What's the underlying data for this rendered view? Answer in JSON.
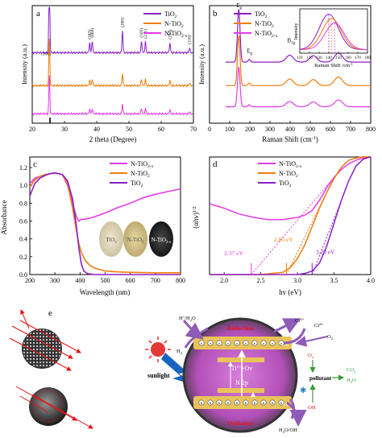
{
  "colors": {
    "tio2": "#8B1FC8",
    "ntio2": "#F07C0A",
    "ntio2x": "#E23CE6",
    "axis": "#000000",
    "sphere_outer": "#4a4a4a",
    "cb_band": "#E9C35A",
    "sun": "#E53935",
    "bolt": "#1565C0",
    "arrow_red": "#E01515",
    "arrow_purple": "#8E5BB7",
    "arrow_green": "#3C9A3C"
  },
  "chart_data": [
    {
      "panel": "a",
      "type": "line",
      "xlabel": "2 theta (Degree)",
      "ylabel": "Intensity (a.u.)",
      "xlim": [
        20,
        70
      ],
      "xticks": [
        "20",
        "30",
        "40",
        "50",
        "60",
        "70"
      ],
      "legend": [
        "TiO",
        "N-TiO",
        "N-TiO"
      ],
      "legend_sub": [
        "2",
        "2",
        "2-x"
      ],
      "legend_position": "top-right",
      "peak_labels": [
        {
          "x": 25.3,
          "label": "(101)"
        },
        {
          "x": 37.8,
          "label": "(103)"
        },
        {
          "x": 38.6,
          "label": "(004)"
        },
        {
          "x": 48.0,
          "label": "(200)"
        },
        {
          "x": 53.9,
          "label": "(105)"
        },
        {
          "x": 55.1,
          "label": "(211)"
        },
        {
          "x": 62.7,
          "label": "(204)"
        },
        {
          "x": 68.8,
          "label": "(116)"
        }
      ],
      "peaks": [
        {
          "x": 25.3,
          "h": 1.0
        },
        {
          "x": 37.8,
          "h": 0.12
        },
        {
          "x": 38.6,
          "h": 0.14
        },
        {
          "x": 48.0,
          "h": 0.26
        },
        {
          "x": 53.9,
          "h": 0.14
        },
        {
          "x": 55.1,
          "h": 0.13
        },
        {
          "x": 62.7,
          "h": 0.12
        },
        {
          "x": 68.8,
          "h": 0.06
        }
      ],
      "series": [
        {
          "color_key": "tio2",
          "offset": 0.6,
          "scale": 1.0
        },
        {
          "color_key": "ntio2",
          "offset": 0.32,
          "scale": 0.55
        },
        {
          "color_key": "ntio2x",
          "offset": 0.08,
          "scale": 0.45
        }
      ]
    },
    {
      "panel": "b",
      "type": "line",
      "xlabel": "Raman Shift (cm",
      "xlabel_sup": "-1",
      "xlabel_end": ")",
      "ylabel": "Intensity (a.u.)",
      "xlim": [
        0,
        800
      ],
      "xticks": [
        "0",
        "100",
        "200",
        "300",
        "400",
        "500",
        "600",
        "700",
        "800"
      ],
      "legend": [
        "TiO",
        "N-TiO",
        "N-TiO"
      ],
      "legend_sub": [
        "2",
        "2",
        "2-x"
      ],
      "legend_position": "top-center",
      "peak_labels": [
        {
          "x": 145,
          "label": "E",
          "sub": "g"
        },
        {
          "x": 197,
          "label": "E",
          "sub": "g"
        },
        {
          "x": 398,
          "label": "B",
          "sub": "1g"
        },
        {
          "x": 515,
          "label": "A",
          "sub": "1g",
          "extra": "+B",
          "extra_sub": "1g"
        },
        {
          "x": 640,
          "label": "E",
          "sub": "g"
        }
      ],
      "peaks": [
        {
          "x": 145,
          "h": 1.0,
          "w": 9
        },
        {
          "x": 197,
          "h": 0.05,
          "w": 8
        },
        {
          "x": 398,
          "h": 0.13,
          "w": 25
        },
        {
          "x": 515,
          "h": 0.12,
          "w": 25
        },
        {
          "x": 640,
          "h": 0.17,
          "w": 28
        }
      ],
      "series": [
        {
          "color_key": "tio2",
          "offset": 0.52,
          "scale": 1.0
        },
        {
          "color_key": "ntio2",
          "offset": 0.32,
          "scale": 0.95
        },
        {
          "color_key": "ntio2x",
          "offset": 0.14,
          "scale": 0.75
        }
      ],
      "inset": {
        "type": "line",
        "xlabel": "Raman Shift /cm",
        "xlabel_sup": "-1",
        "ylabel": "Intensity",
        "xlim": [
          110,
          180
        ],
        "xticks": [
          "110",
          "120",
          "130",
          "140",
          "150",
          "160",
          "170",
          "180"
        ],
        "centers": [
          140,
          143,
          146
        ]
      }
    },
    {
      "panel": "c",
      "type": "line",
      "xlabel": "Wavelength (nm)",
      "ylabel": "Absorbance",
      "xlim": [
        200,
        800
      ],
      "ylim": [
        0.0,
        1.2
      ],
      "xticks": [
        "200",
        "300",
        "400",
        "500",
        "600",
        "700",
        "800"
      ],
      "yticks": [
        "0.0",
        "0.2",
        "0.4",
        "0.6",
        "0.8",
        "1.0",
        "1.2"
      ],
      "legend": [
        "N-TiO",
        "N-TiO",
        "TiO"
      ],
      "legend_sub": [
        "2-x",
        "2",
        "2"
      ],
      "legend_position": "top-right",
      "sample_labels": [
        "TiO",
        "N-TiO",
        "N-TiO"
      ],
      "sample_subs": [
        "2",
        "2",
        "2-x"
      ],
      "series": [
        {
          "color_key": "ntio2x",
          "x": [
            200,
            220,
            240,
            260,
            280,
            300,
            330,
            350,
            370,
            385,
            395,
            405,
            420,
            450,
            500,
            550,
            600,
            650,
            700,
            750,
            800
          ],
          "y": [
            1.02,
            1.08,
            1.1,
            1.12,
            1.13,
            1.14,
            1.12,
            1.0,
            0.8,
            0.65,
            0.6,
            0.62,
            0.62,
            0.64,
            0.69,
            0.75,
            0.8,
            0.86,
            0.9,
            0.93,
            0.96
          ]
        },
        {
          "color_key": "ntio2",
          "x": [
            200,
            220,
            240,
            260,
            280,
            300,
            330,
            350,
            370,
            385,
            395,
            405,
            420,
            440,
            460,
            500,
            550,
            600,
            700,
            800
          ],
          "y": [
            0.98,
            1.06,
            1.1,
            1.12,
            1.13,
            1.14,
            1.12,
            1.02,
            0.75,
            0.5,
            0.35,
            0.25,
            0.16,
            0.1,
            0.07,
            0.04,
            0.03,
            0.025,
            0.02,
            0.02
          ]
        },
        {
          "color_key": "tio2",
          "x": [
            200,
            220,
            240,
            260,
            280,
            300,
            330,
            350,
            370,
            385,
            395,
            405,
            415,
            430,
            460,
            500,
            600,
            700,
            800
          ],
          "y": [
            0.88,
            1.02,
            1.08,
            1.11,
            1.13,
            1.14,
            1.12,
            1.05,
            0.85,
            0.55,
            0.3,
            0.12,
            0.04,
            0.01,
            0.0,
            0.0,
            0.0,
            0.0,
            0.0
          ]
        }
      ]
    },
    {
      "panel": "d",
      "type": "line",
      "xlabel": "hv (eV)",
      "ylabel": "(αhv)",
      "ylabel_sup": "1/2",
      "xlim": [
        1.8,
        4.0
      ],
      "xticks": [
        "2.0",
        "2.5",
        "3.0",
        "3.5",
        "4.0"
      ],
      "legend": [
        "N-TiO",
        "N-TiO",
        "TiO"
      ],
      "legend_sub": [
        "2-x",
        "2",
        "2"
      ],
      "legend_position": "top-right",
      "annotations": [
        {
          "label": "2.37 eV",
          "x": 2.37,
          "color_key": "ntio2x"
        },
        {
          "label": "2.85 eV",
          "x": 2.85,
          "color_key": "ntio2"
        },
        {
          "label": "3.20 eV",
          "x": 3.2,
          "color_key": "tio2"
        }
      ],
      "series": [
        {
          "color_key": "ntio2x",
          "x": [
            1.8,
            2.0,
            2.2,
            2.4,
            2.6,
            2.8,
            3.0,
            3.1,
            3.2,
            3.3,
            3.4,
            3.5,
            3.6,
            3.7,
            3.8,
            3.9,
            4.0
          ],
          "y": [
            0.62,
            0.58,
            0.53,
            0.5,
            0.48,
            0.48,
            0.5,
            0.52,
            0.56,
            0.65,
            0.76,
            0.85,
            0.92,
            0.97,
            1.0,
            1.02,
            1.03
          ]
        },
        {
          "color_key": "ntio2",
          "x": [
            1.8,
            2.5,
            2.8,
            2.9,
            3.0,
            3.1,
            3.2,
            3.3,
            3.4,
            3.5,
            3.6,
            3.7,
            3.8,
            3.9,
            4.0
          ],
          "y": [
            0.0,
            0.0,
            0.02,
            0.06,
            0.14,
            0.26,
            0.42,
            0.58,
            0.72,
            0.84,
            0.94,
            1.0,
            1.02,
            1.03,
            1.03
          ]
        },
        {
          "color_key": "tio2",
          "x": [
            1.8,
            3.0,
            3.1,
            3.2,
            3.3,
            3.4,
            3.5,
            3.6,
            3.7,
            3.8,
            3.9,
            4.0
          ],
          "y": [
            0.0,
            0.0,
            0.01,
            0.03,
            0.1,
            0.25,
            0.45,
            0.65,
            0.82,
            0.95,
            1.01,
            1.03
          ]
        }
      ]
    }
  ],
  "panel_e": {
    "label": "e",
    "top_left": "H",
    "top_left_sup": "+",
    "top_left_end": "/H",
    "top_left_sub": "2",
    "top_left_tail": "O",
    "h2": "H",
    "h2_sub": "2",
    "reduction": "Reduction",
    "cr6": "Cr",
    "cr6_sup": "6+",
    "cr3": "Cr",
    "cr3_sup": "3+",
    "o2": "O",
    "o2_sub": "2",
    "o2_minus": "·O",
    "o2_minus_sub": "2",
    "o2_minus_sup": "-",
    "cb": "CB",
    "vb": "VB",
    "ti_ov": "Ti",
    "ti_ov_sup": "3+",
    "ti_ov_end": "+Ov",
    "n2p": "N 2p",
    "sunlight": "sunlight",
    "pollutant": "pollutant",
    "co2": "CO",
    "co2_sub": "2",
    "h2o": "H",
    "h2o_sub": "2",
    "h2o_end": "O",
    "oh": "·OH",
    "oxidation": "Oxidation",
    "h2o_oh": "H",
    "h2o_oh_sub": "2",
    "h2o_oh_end": "O/OH",
    "h2o_oh_sup": "-",
    "electron_symbol": "e",
    "hole_symbol": "h"
  }
}
